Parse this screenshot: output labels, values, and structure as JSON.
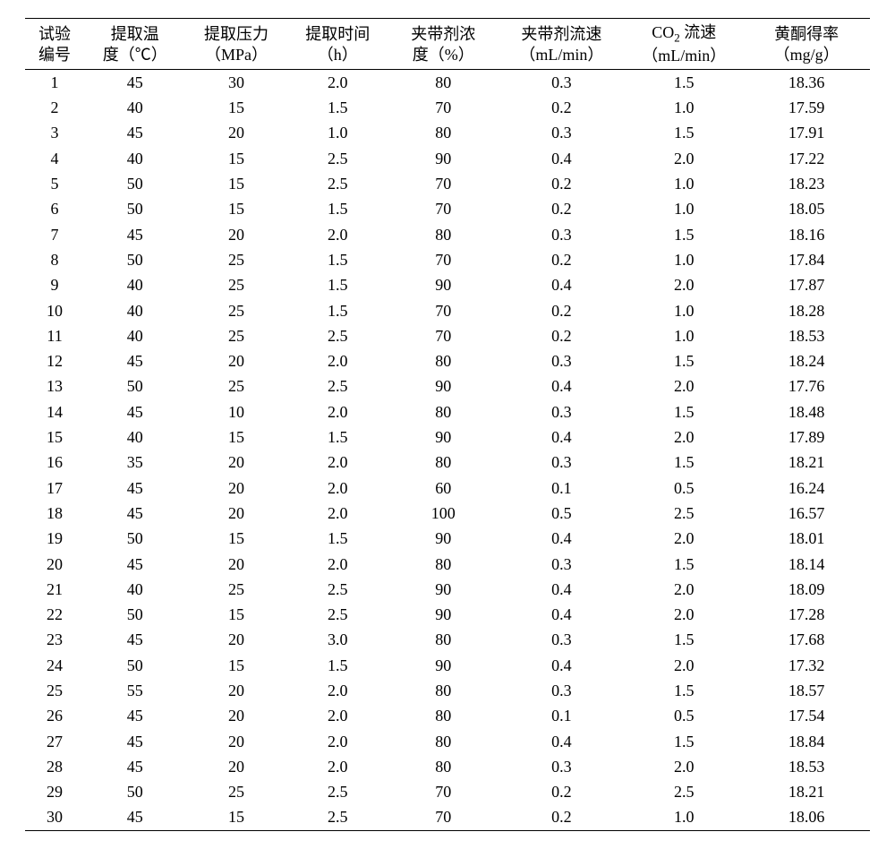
{
  "table": {
    "background_color": "#ffffff",
    "text_color": "#000000",
    "border_color": "#000000",
    "header_fontsize": 18,
    "cell_fontsize": 18,
    "columns": [
      {
        "line1": "试验",
        "line2": "编号"
      },
      {
        "line1": "提取温",
        "line2": "度（℃）"
      },
      {
        "line1": "提取压力",
        "line2": "（MPa）"
      },
      {
        "line1": "提取时间",
        "line2": "（h）"
      },
      {
        "line1": "夹带剂浓",
        "line2": "度（%）"
      },
      {
        "line1": "夹带剂流速",
        "line2": "（mL/min）"
      },
      {
        "line1_html": "CO<span class=\"sub\">2</span> 流速",
        "line2": "（mL/min）"
      },
      {
        "line1": "黄酮得率",
        "line2": "（mg/g）"
      }
    ],
    "rows": [
      [
        "1",
        "45",
        "30",
        "2.0",
        "80",
        "0.3",
        "1.5",
        "18.36"
      ],
      [
        "2",
        "40",
        "15",
        "1.5",
        "70",
        "0.2",
        "1.0",
        "17.59"
      ],
      [
        "3",
        "45",
        "20",
        "1.0",
        "80",
        "0.3",
        "1.5",
        "17.91"
      ],
      [
        "4",
        "40",
        "15",
        "2.5",
        "90",
        "0.4",
        "2.0",
        "17.22"
      ],
      [
        "5",
        "50",
        "15",
        "2.5",
        "70",
        "0.2",
        "1.0",
        "18.23"
      ],
      [
        "6",
        "50",
        "15",
        "1.5",
        "70",
        "0.2",
        "1.0",
        "18.05"
      ],
      [
        "7",
        "45",
        "20",
        "2.0",
        "80",
        "0.3",
        "1.5",
        "18.16"
      ],
      [
        "8",
        "50",
        "25",
        "1.5",
        "70",
        "0.2",
        "1.0",
        "17.84"
      ],
      [
        "9",
        "40",
        "25",
        "1.5",
        "90",
        "0.4",
        "2.0",
        "17.87"
      ],
      [
        "10",
        "40",
        "25",
        "1.5",
        "70",
        "0.2",
        "1.0",
        "18.28"
      ],
      [
        "11",
        "40",
        "25",
        "2.5",
        "70",
        "0.2",
        "1.0",
        "18.53"
      ],
      [
        "12",
        "45",
        "20",
        "2.0",
        "80",
        "0.3",
        "1.5",
        "18.24"
      ],
      [
        "13",
        "50",
        "25",
        "2.5",
        "90",
        "0.4",
        "2.0",
        "17.76"
      ],
      [
        "14",
        "45",
        "10",
        "2.0",
        "80",
        "0.3",
        "1.5",
        "18.48"
      ],
      [
        "15",
        "40",
        "15",
        "1.5",
        "90",
        "0.4",
        "2.0",
        "17.89"
      ],
      [
        "16",
        "35",
        "20",
        "2.0",
        "80",
        "0.3",
        "1.5",
        "18.21"
      ],
      [
        "17",
        "45",
        "20",
        "2.0",
        "60",
        "0.1",
        "0.5",
        "16.24"
      ],
      [
        "18",
        "45",
        "20",
        "2.0",
        "100",
        "0.5",
        "2.5",
        "16.57"
      ],
      [
        "19",
        "50",
        "15",
        "1.5",
        "90",
        "0.4",
        "2.0",
        "18.01"
      ],
      [
        "20",
        "45",
        "20",
        "2.0",
        "80",
        "0.3",
        "1.5",
        "18.14"
      ],
      [
        "21",
        "40",
        "25",
        "2.5",
        "90",
        "0.4",
        "2.0",
        "18.09"
      ],
      [
        "22",
        "50",
        "15",
        "2.5",
        "90",
        "0.4",
        "2.0",
        "17.28"
      ],
      [
        "23",
        "45",
        "20",
        "3.0",
        "80",
        "0.3",
        "1.5",
        "17.68"
      ],
      [
        "24",
        "50",
        "15",
        "1.5",
        "90",
        "0.4",
        "2.0",
        "17.32"
      ],
      [
        "25",
        "55",
        "20",
        "2.0",
        "80",
        "0.3",
        "1.5",
        "18.57"
      ],
      [
        "26",
        "45",
        "20",
        "2.0",
        "80",
        "0.1",
        "0.5",
        "17.54"
      ],
      [
        "27",
        "45",
        "20",
        "2.0",
        "80",
        "0.4",
        "1.5",
        "18.84"
      ],
      [
        "28",
        "45",
        "20",
        "2.0",
        "80",
        "0.3",
        "2.0",
        "18.53"
      ],
      [
        "29",
        "50",
        "25",
        "2.5",
        "70",
        "0.2",
        "2.5",
        "18.21"
      ],
      [
        "30",
        "45",
        "15",
        "2.5",
        "70",
        "0.2",
        "1.0",
        "18.06"
      ]
    ]
  }
}
